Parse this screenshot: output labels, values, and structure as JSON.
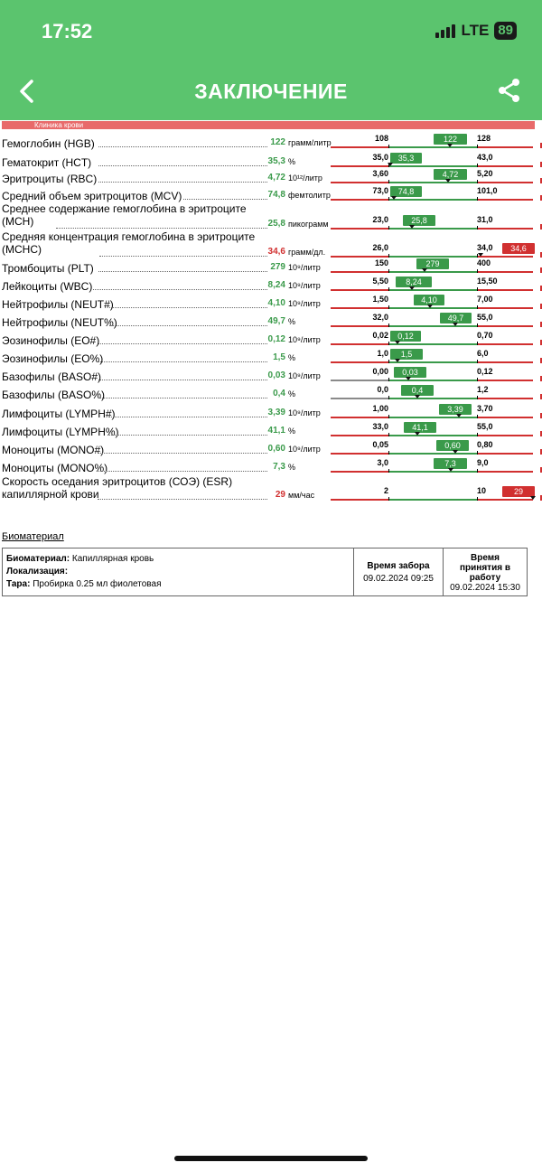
{
  "status_bar": {
    "time": "17:52",
    "network": "LTE",
    "battery": "89"
  },
  "header": {
    "title": "ЗАКЛЮЧЕНИЕ",
    "back_icon": "chevron-left-icon",
    "share_icon": "share-icon"
  },
  "section_label": "Клиника крови",
  "colors": {
    "header": "#5bc46e",
    "normal": "#3a9a4a",
    "abnormal": "#d13030",
    "neutral": "#8a8a8a"
  },
  "rows": [
    {
      "name": "Гемоглобин (HGB)",
      "value": "122",
      "unit": "грамм/литр",
      "low": "108",
      "high": "128",
      "tag": "122"
    },
    {
      "name": "Гематокрит (HCT)",
      "value": "35,3",
      "unit": "%",
      "low": "35,0",
      "high": "43,0",
      "tag": "35,3"
    },
    {
      "name": "Эритроциты (RBC)",
      "value": "4,72",
      "unit": "10¹²/литр",
      "low": "3,60",
      "high": "5,20",
      "tag": "4,72"
    },
    {
      "name": "Средний объем эритроцитов (MCV)",
      "value": "74,8",
      "unit": "фемтолитр",
      "low": "73,0",
      "high": "101,0",
      "tag": "74,8"
    },
    {
      "name": "Среднее содержание гемоглобина в эритроците (MCH)",
      "value": "25,8",
      "unit": "пикограмм",
      "low": "23,0",
      "high": "31,0",
      "tag": "25,8"
    },
    {
      "name": "Средняя концентрация гемоглобина в эритроците (MCHC)",
      "value": "34,6",
      "unit": "грамм/дл.",
      "low": "26,0",
      "high": "34,0",
      "tag": "34,6"
    },
    {
      "name": "Тромбоциты (PLT)",
      "value": "279",
      "unit": "10⁹/литр",
      "low": "150",
      "high": "400",
      "tag": "279"
    },
    {
      "name": "Лейкоциты (WBC)",
      "value": "8,24",
      "unit": "10⁹/литр",
      "low": "5,50",
      "high": "15,50",
      "tag": "8,24"
    },
    {
      "name": "Нейтрофилы (NEUT#)",
      "value": "4,10",
      "unit": "10⁹/литр",
      "low": "1,50",
      "high": "7,00",
      "tag": "4,10"
    },
    {
      "name": "Нейтрофилы (NEUT%)",
      "value": "49,7",
      "unit": "%",
      "low": "32,0",
      "high": "55,0",
      "tag": "49,7"
    },
    {
      "name": "Эозинофилы (EO#)",
      "value": "0,12",
      "unit": "10⁹/литр",
      "low": "0,02",
      "high": "0,70",
      "tag": "0,12"
    },
    {
      "name": "Эозинофилы (EO%)",
      "value": "1,5",
      "unit": "%",
      "low": "1,0",
      "high": "6,0",
      "tag": "1,5"
    },
    {
      "name": "Базофилы (BASO#)",
      "value": "0,03",
      "unit": "10⁹/литр",
      "low": "0,00",
      "high": "0,12",
      "tag": "0,03"
    },
    {
      "name": "Базофилы (BASO%)",
      "value": "0,4",
      "unit": "%",
      "low": "0,0",
      "high": "1,2",
      "tag": "0,4"
    },
    {
      "name": "Лимфоциты (LYMPH#)",
      "value": "3,39",
      "unit": "10⁹/литр",
      "low": "1,00",
      "high": "3,70",
      "tag": "3,39"
    },
    {
      "name": "Лимфоциты (LYMPH%)",
      "value": "41,1",
      "unit": "%",
      "low": "33,0",
      "high": "55,0",
      "tag": "41,1"
    },
    {
      "name": "Моноциты (MONO#)",
      "value": "0,60",
      "unit": "10⁹/литр",
      "low": "0,05",
      "high": "0,80",
      "tag": "0,60"
    },
    {
      "name": "Моноциты (MONO%)",
      "value": "7,3",
      "unit": "%",
      "low": "3,0",
      "high": "9,0",
      "tag": "7,3"
    },
    {
      "name": "Скорость оседания эритроцитов (СОЭ) (ESR) капиллярной крови",
      "value": "29",
      "unit": "мм/час",
      "low": "2",
      "high": "10",
      "tag": "29"
    }
  ],
  "biomaterial": {
    "section_title": "Биоматериал",
    "material_label": "Биоматериал:",
    "material_value": "Капиллярная кровь",
    "localization_label": "Локализация:",
    "container_label": "Тара:",
    "container_value": "Пробирка 0.25 мл фиолетовая",
    "collect_header": "Время забора",
    "collect_time": "09.02.2024 09:25",
    "accept_header": "Время принятия в работу",
    "accept_time": "09.02.2024 15:30"
  }
}
